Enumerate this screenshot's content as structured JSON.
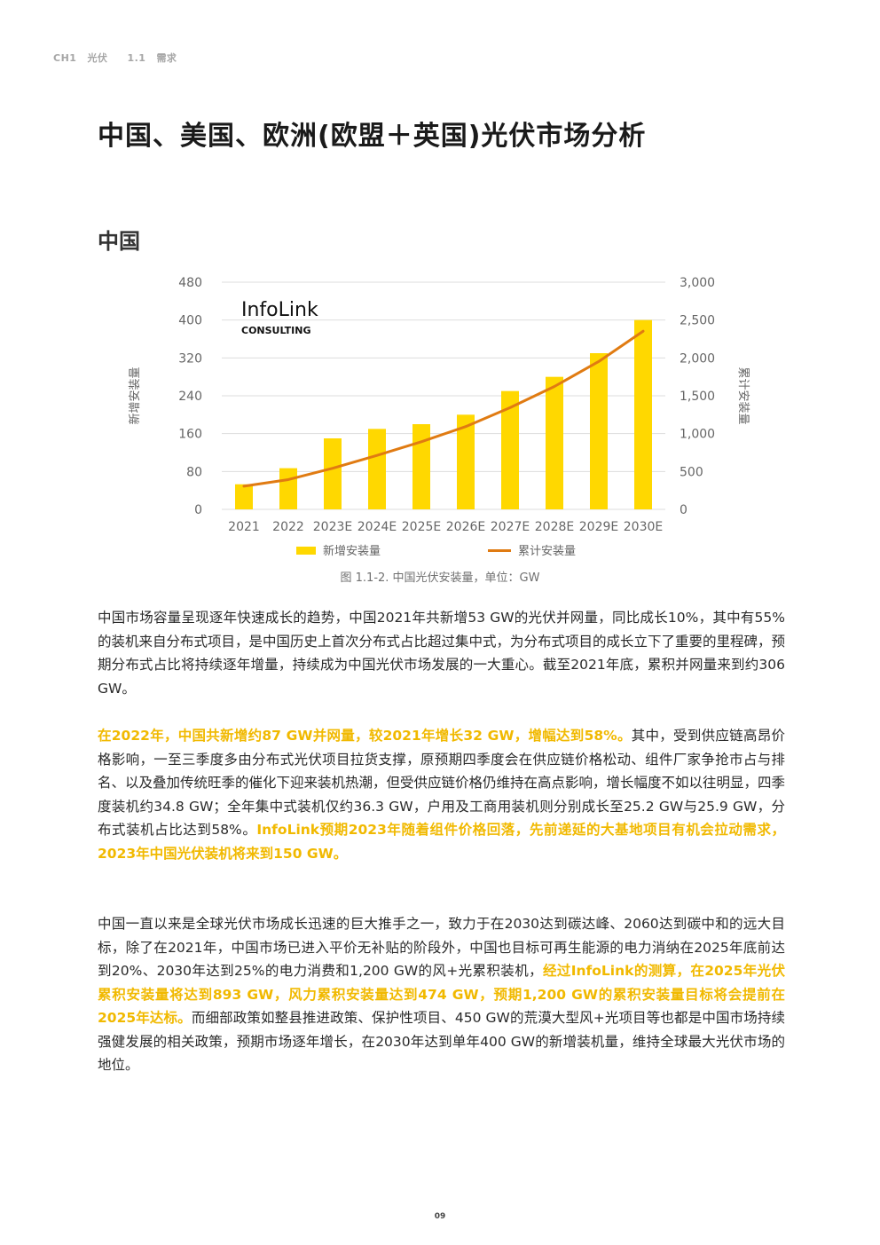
{
  "breadcrumb": {
    "chapter": "CH1",
    "chapter_name": "光伏",
    "section": "1.1",
    "section_name": "需求"
  },
  "page_title": "中国、美国、欧洲(欧盟＋英国)光伏市场分析",
  "section_title": "中国",
  "logo": {
    "name": "InfoLink",
    "sub": "CONSULTING"
  },
  "figure_caption": "图 1.1-2. 中国光伏安装量，单位：GW",
  "chart_data": {
    "type": "bar",
    "categories": [
      "2021",
      "2022",
      "2023E",
      "2024E",
      "2025E",
      "2026E",
      "2027E",
      "2028E",
      "2029E",
      "2030E"
    ],
    "series": [
      {
        "name": "新增安装量",
        "type": "bar",
        "axis": "left",
        "values": [
          53,
          87,
          150,
          170,
          180,
          200,
          250,
          280,
          330,
          400
        ]
      },
      {
        "name": "累计安装量",
        "type": "line",
        "axis": "right",
        "values": [
          306,
          393,
          543,
          713,
          893,
          1093,
          1343,
          1623,
          1953,
          2353
        ]
      }
    ],
    "ylabel": "新增安装量",
    "y2label": "累计安装量",
    "ylim": [
      0,
      480
    ],
    "yticks": [
      "0",
      "80",
      "160",
      "240",
      "320",
      "400",
      "480"
    ],
    "y2lim": [
      0,
      3000
    ],
    "y2ticks": [
      "0",
      "500",
      "1,000",
      "1,500",
      "2,000",
      "2,500",
      "3,000"
    ],
    "grid": true,
    "legend": "bottom",
    "colors": {
      "bar": "#ffd800",
      "line": "#e07b12",
      "grid": "#dddddd"
    }
  },
  "paragraphs": {
    "p1": [
      {
        "text": "中国市场容量呈现逐年快速成长的趋势，中国2021年共新增53 GW的光伏并网量，同比成长10%，其中有55%的装机来自分布式项目，是中国历史上首次分布式占比超过集中式，为分布式项目的成长立下了重要的里程碑，预期分布式占比将持续逐年增量，持续成为中国光伏市场发展的一大重心。截至2021年底，累积并网量来到约306 GW。",
        "hl": false
      }
    ],
    "p2": [
      {
        "text": "在2022年，中国共新增约87 GW并网量，较2021年增长32 GW，增幅达到58%。",
        "hl": true
      },
      {
        "text": "其中，受到供应链高昂价格影响，一至三季度多由分布式光伏项目拉货支撑，原预期四季度会在供应链价格松动、组件厂家争抢市占与排名、以及叠加传统旺季的催化下迎来装机热潮，但受供应链价格仍维持在高点影响，增长幅度不如以往明显，四季度装机约34.8 GW；全年集中式装机仅约36.3 GW，户用及工商用装机则分别成长至25.2 GW与25.9 GW，分布式装机占比达到58%。",
        "hl": false
      },
      {
        "text": "InfoLink预期2023年随着组件价格回落，先前递延的大基地项目有机会拉动需求，2023年中国光伏装机将来到150 GW。",
        "hl": true
      }
    ],
    "p3": [
      {
        "text": "中国一直以来是全球光伏市场成长迅速的巨大推手之一，致力于在2030达到碳达峰、2060达到碳中和的远大目标，除了在2021年，中国市场已进入平价无补贴的阶段外，中国也目标可再生能源的电力消纳在2025年底前达到20%、2030年达到25%的电力消费和1,200 GW的风+光累积装机，",
        "hl": false
      },
      {
        "text": "经过InfoLink的测算，在2025年光伏累积安装量将达到893 GW，风力累积安装量达到474 GW，预期1,200 GW的累积安装量目标将会提前在2025年达标。",
        "hl": true
      },
      {
        "text": "而细部政策如整县推进政策、保护性项目、450 GW的荒漠大型风+光项目等也都是中国市场持续强健发展的相关政策，预期市场逐年增长，在2030年达到单年400 GW的新增装机量，维持全球最大光伏市场的地位。",
        "hl": false
      }
    ]
  },
  "page_number": "09"
}
